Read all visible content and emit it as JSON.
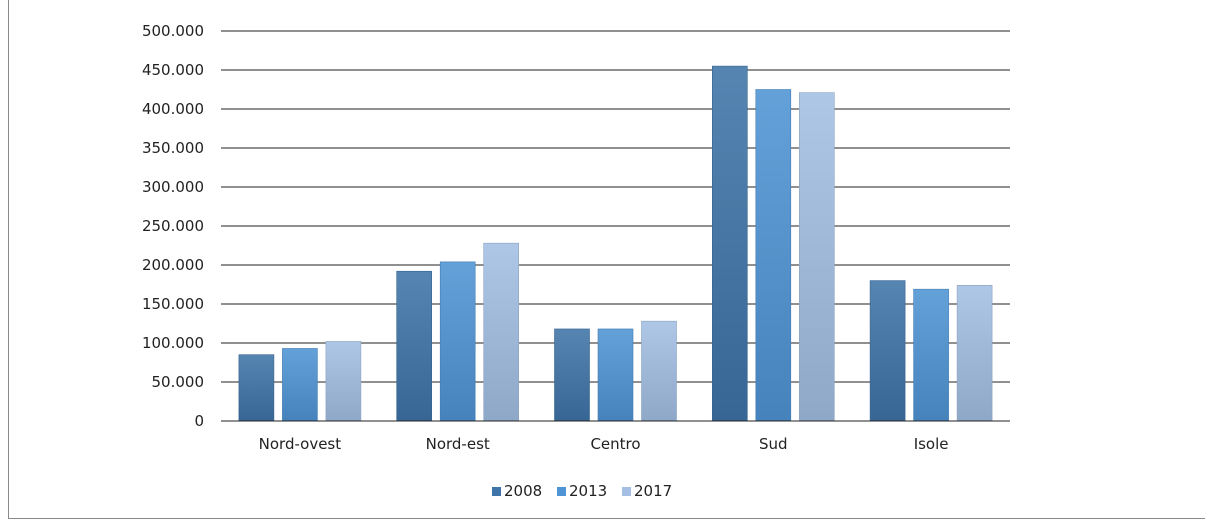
{
  "chart_data": {
    "type": "bar",
    "title": "",
    "xlabel": "",
    "ylabel": "",
    "categories": [
      "Nord-ovest",
      "Nord-est",
      "Centro",
      "Sud",
      "Isole"
    ],
    "series": [
      {
        "name": "2008",
        "color": "#3f74a8",
        "values": [
          85000,
          192000,
          118000,
          455000,
          180000
        ]
      },
      {
        "name": "2013",
        "color": "#4f94d4",
        "values": [
          93000,
          204000,
          118000,
          425000,
          169000
        ]
      },
      {
        "name": "2017",
        "color": "#a4bfe3",
        "values": [
          102000,
          228000,
          128000,
          421000,
          174000
        ]
      }
    ],
    "ylim": [
      0,
      500000
    ],
    "yticks": [
      0,
      50000,
      100000,
      150000,
      200000,
      250000,
      300000,
      350000,
      400000,
      450000,
      500000
    ],
    "ytick_labels": [
      "0",
      "50.000",
      "100.000",
      "150.000",
      "200.000",
      "250.000",
      "300.000",
      "350.000",
      "400.000",
      "450.000",
      "500.000"
    ],
    "grid": "horizontal",
    "legend_position": "bottom"
  }
}
